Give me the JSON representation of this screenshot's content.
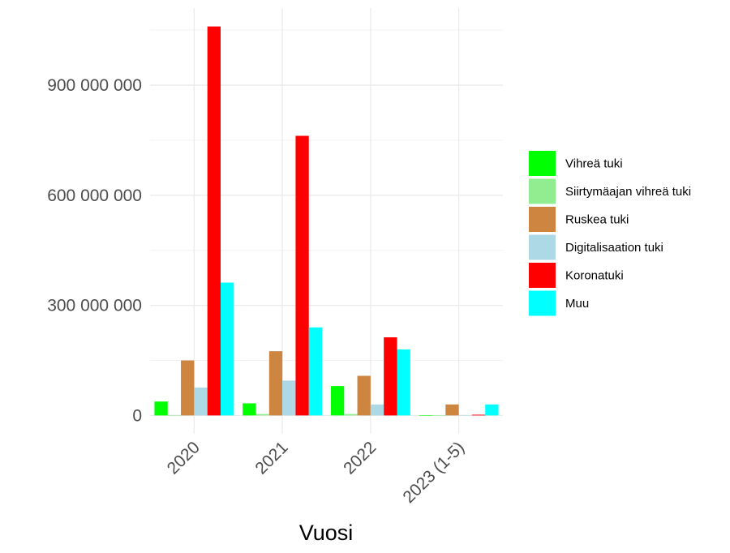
{
  "chart_data": {
    "type": "bar",
    "title": "",
    "xlabel": "Vuosi",
    "ylabel": "",
    "categories": [
      "2020",
      "2021",
      "2022",
      "2023 (1-5)"
    ],
    "series": [
      {
        "name": "Vihreä tuki",
        "color": "#00ff00",
        "values": [
          38000000,
          33000000,
          80000000,
          500000
        ]
      },
      {
        "name": "Siirtymäajan vihreä tuki",
        "color": "#90ee90",
        "values": [
          1000000,
          4000000,
          4000000,
          500000
        ]
      },
      {
        "name": "Ruskea tuki",
        "color": "#cd853f",
        "values": [
          150000000,
          175000000,
          108000000,
          30000000
        ]
      },
      {
        "name": "Digitalisaation tuki",
        "color": "#add8e6",
        "values": [
          76000000,
          95000000,
          30000000,
          1000000
        ]
      },
      {
        "name": "Koronatuki",
        "color": "#ff0000",
        "values": [
          1060000000,
          762000000,
          213000000,
          2000000
        ]
      },
      {
        "name": "Muu",
        "color": "#00ffff",
        "values": [
          362000000,
          240000000,
          180000000,
          30000000
        ]
      }
    ],
    "ylim": [
      -50000000,
      1110000000
    ],
    "yticks": [
      0,
      300000000,
      600000000,
      900000000
    ],
    "ytick_labels": [
      "0",
      "300 000 000",
      "600 000 000",
      "900 000 000"
    ],
    "grid": true,
    "legend_position": "right"
  }
}
